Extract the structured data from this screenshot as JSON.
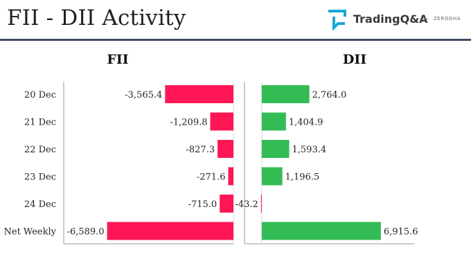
{
  "header": {
    "title": "FII - DII Activity",
    "logo_text": "TradingQ&A",
    "logo_by": "by",
    "logo_brand": "ZERODHA"
  },
  "colors": {
    "negative": "#ff1654",
    "positive": "#33bb55",
    "rule": "#3f4c66"
  },
  "chart_data": [
    {
      "type": "bar",
      "orientation": "horizontal",
      "title": "FII",
      "categories": [
        "20 Dec",
        "21 Dec",
        "22 Dec",
        "23 Dec",
        "24 Dec",
        "Net Weekly"
      ],
      "values": [
        -3565.4,
        -1209.8,
        -827.3,
        -271.6,
        -715.0,
        -6589.0
      ],
      "value_labels": [
        "-3,565.4",
        "-1,209.8",
        "-827.3",
        "-271.6",
        "-715.0",
        "-6,589.0"
      ],
      "xlim": [
        -8850,
        0
      ]
    },
    {
      "type": "bar",
      "orientation": "horizontal",
      "title": "DII",
      "categories": [
        "20 Dec",
        "21 Dec",
        "22 Dec",
        "23 Dec",
        "24 Dec",
        "Net Weekly"
      ],
      "values": [
        2764.0,
        1404.9,
        1593.4,
        1196.5,
        -43.2,
        6915.6
      ],
      "value_labels": [
        "2,764.0",
        "1,404.9",
        "1,593.4",
        "1,196.5",
        "-43.2",
        "6,915.6"
      ],
      "xlim": [
        -1000,
        8850
      ]
    }
  ]
}
